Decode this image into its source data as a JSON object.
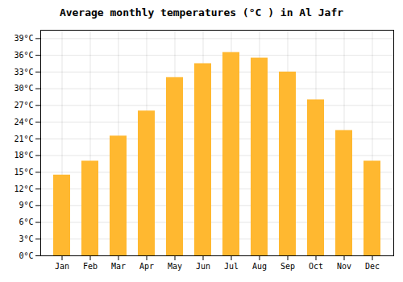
{
  "chart_data": {
    "type": "bar",
    "title": "Average monthly temperatures (°C ) in Al Jafr",
    "categories": [
      "Jan",
      "Feb",
      "Mar",
      "Apr",
      "May",
      "Jun",
      "Jul",
      "Aug",
      "Sep",
      "Oct",
      "Nov",
      "Dec"
    ],
    "values": [
      14.5,
      17.0,
      21.5,
      26.0,
      32.0,
      34.5,
      36.5,
      35.5,
      33.0,
      28.0,
      22.5,
      17.0
    ],
    "color": "#FFB830",
    "ylim": [
      0,
      40.5
    ],
    "yticks": [
      {
        "value": 0,
        "label": "0°C"
      },
      {
        "value": 3,
        "label": "3°C"
      },
      {
        "value": 6,
        "label": "6°C"
      },
      {
        "value": 9,
        "label": "9°C"
      },
      {
        "value": 12,
        "label": "12°C"
      },
      {
        "value": 15,
        "label": "15°C"
      },
      {
        "value": 18,
        "label": "18°C"
      },
      {
        "value": 21,
        "label": "21°C"
      },
      {
        "value": 24,
        "label": "24°C"
      },
      {
        "value": 27,
        "label": "27°C"
      },
      {
        "value": 30,
        "label": "30°C"
      },
      {
        "value": 33,
        "label": "33°C"
      },
      {
        "value": 36,
        "label": "36°C"
      },
      {
        "value": 39,
        "label": "39°C"
      }
    ],
    "grid": true
  }
}
